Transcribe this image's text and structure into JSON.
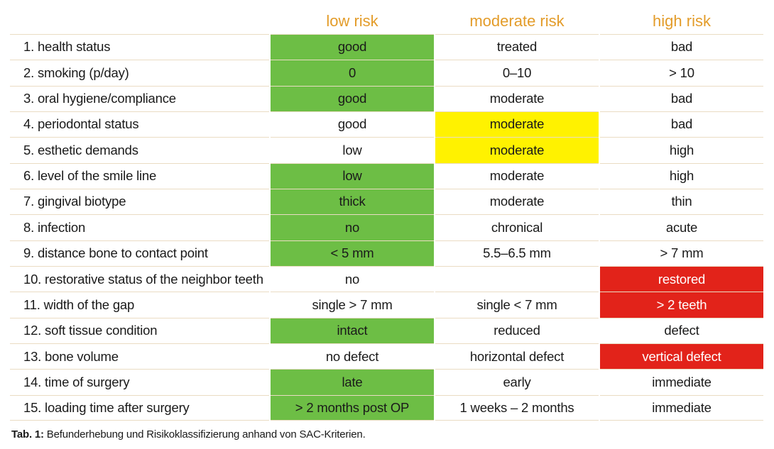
{
  "colors": {
    "header_text": "#e39c2a",
    "green": "#6dbe45",
    "yellow": "#fff200",
    "red": "#e2231a",
    "divider": "#eadcc3"
  },
  "table": {
    "headers": [
      "low risk",
      "moderate risk",
      "high risk"
    ],
    "rows": [
      {
        "label": "1. health status",
        "low": "good",
        "moderate": "treated",
        "high": "bad",
        "highlight": [
          "green",
          "",
          ""
        ]
      },
      {
        "label": "2. smoking (p/day)",
        "low": "0",
        "moderate": "0–10",
        "high": "> 10",
        "highlight": [
          "green",
          "",
          ""
        ]
      },
      {
        "label": "3. oral hygiene/compliance",
        "low": "good",
        "moderate": "moderate",
        "high": "bad",
        "highlight": [
          "green",
          "",
          ""
        ]
      },
      {
        "label": "4. periodontal status",
        "low": "good",
        "moderate": "moderate",
        "high": "bad",
        "highlight": [
          "",
          "yellow",
          ""
        ]
      },
      {
        "label": "5. esthetic demands",
        "low": "low",
        "moderate": "moderate",
        "high": "high",
        "highlight": [
          "",
          "yellow",
          ""
        ]
      },
      {
        "label": "6. level of the smile line",
        "low": "low",
        "moderate": "moderate",
        "high": "high",
        "highlight": [
          "green",
          "",
          ""
        ]
      },
      {
        "label": "7. gingival biotype",
        "low": "thick",
        "moderate": "moderate",
        "high": "thin",
        "highlight": [
          "green",
          "",
          ""
        ]
      },
      {
        "label": "8. infection",
        "low": "no",
        "moderate": "chronical",
        "high": "acute",
        "highlight": [
          "green",
          "",
          ""
        ]
      },
      {
        "label": "9. distance bone to contact point",
        "low": "< 5 mm",
        "moderate": "5.5–6.5 mm",
        "high": "> 7 mm",
        "highlight": [
          "green",
          "",
          ""
        ]
      },
      {
        "label": "10. restorative status of the neighbor teeth",
        "low": "no",
        "moderate": "",
        "high": "restored",
        "highlight": [
          "",
          "",
          "red"
        ]
      },
      {
        "label": "11. width of the gap",
        "low": "single > 7 mm",
        "moderate": "single < 7 mm",
        "high": "> 2 teeth",
        "highlight": [
          "",
          "",
          "red"
        ]
      },
      {
        "label": "12. soft tissue condition",
        "low": "intact",
        "moderate": "reduced",
        "high": "defect",
        "highlight": [
          "green",
          "",
          ""
        ]
      },
      {
        "label": "13. bone volume",
        "low": "no defect",
        "moderate": "horizontal defect",
        "high": "vertical defect",
        "highlight": [
          "",
          "",
          "red"
        ]
      },
      {
        "label": "14. time of surgery",
        "low": "late",
        "moderate": "early",
        "high": "immediate",
        "highlight": [
          "green",
          "",
          ""
        ]
      },
      {
        "label": "15. loading time after surgery",
        "low": "> 2 months post OP",
        "moderate": "1 weeks – 2 months",
        "high": "immediate",
        "highlight": [
          "green",
          "",
          ""
        ]
      }
    ]
  },
  "caption": {
    "prefix": "Tab. 1:",
    "text": " Befunderhebung und Risikoklassifizierung anhand von SAC-Kriterien."
  }
}
